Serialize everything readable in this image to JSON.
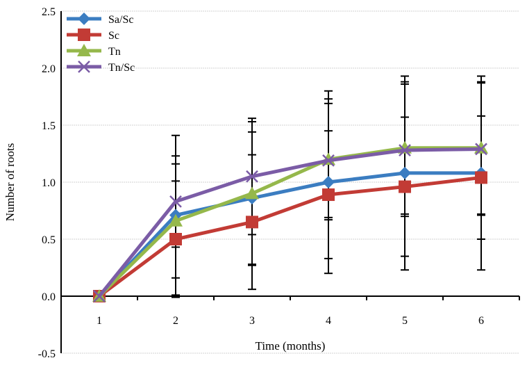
{
  "chart_data": {
    "type": "line",
    "title": "",
    "xlabel": "Time (months)",
    "ylabel": "Number of roots",
    "categories": [
      "1",
      "2",
      "3",
      "4",
      "5",
      "6"
    ],
    "ylim": [
      -0.5,
      2.5
    ],
    "yticks": [
      "-0.5",
      "0.0",
      "0.5",
      "1.0",
      "1.5",
      "2.0",
      "2.5"
    ],
    "grid": true,
    "legend_position": "top-left",
    "error_bars": true,
    "series": [
      {
        "name": "Sa/Sc",
        "color": "#3b7dc1",
        "marker": "diamond",
        "values": [
          0,
          0.71,
          0.86,
          1.0,
          1.08,
          1.08
        ],
        "errors": [
          0,
          0.7,
          0.58,
          0.8,
          0.85,
          0.85
        ]
      },
      {
        "name": "Sc",
        "color": "#c23b35",
        "marker": "square",
        "values": [
          0,
          0.5,
          0.65,
          0.89,
          0.96,
          1.04
        ],
        "errors": [
          0,
          0.51,
          0.59,
          0.56,
          0.61,
          0.54
        ]
      },
      {
        "name": "Tn",
        "color": "#95b84b",
        "marker": "triangle",
        "values": [
          0,
          0.66,
          0.9,
          1.2,
          1.3,
          1.3
        ],
        "errors": [
          0,
          0.5,
          0.63,
          0.53,
          0.58,
          0.58
        ]
      },
      {
        "name": "Tn/Sc",
        "color": "#7b5ca6",
        "marker": "x",
        "values": [
          0,
          0.83,
          1.05,
          1.19,
          1.28,
          1.29
        ],
        "errors": [
          0,
          0.4,
          0.51,
          0.5,
          0.58,
          0.58
        ]
      }
    ]
  }
}
